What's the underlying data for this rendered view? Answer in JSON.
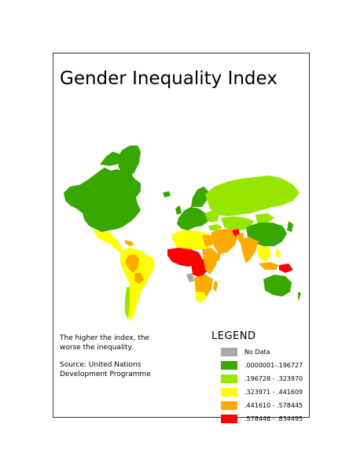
{
  "title": "Gender Inequality Index",
  "notes": {
    "line1": "The higher the index, the",
    "line2": "worse the inequality.",
    "line3": "Source: United Nations",
    "line4": "Development Programme"
  },
  "legend": {
    "title": "LEGEND",
    "items": [
      {
        "label": "No Data",
        "color": "#a9a9a9"
      },
      {
        "label": ".0000001-.196727",
        "color": "#38a800"
      },
      {
        "label": ".196728 - .323970",
        "color": "#98e600"
      },
      {
        "label": ".323971 - .441609",
        "color": "#ffff00"
      },
      {
        "label": ".441610 - .578445",
        "color": "#ffaa00"
      },
      {
        "label": ".578446 - .834495",
        "color": "#ff0000"
      }
    ]
  },
  "regions": [
    {
      "name": "north-america",
      "class": ".0000001-.196727"
    },
    {
      "name": "greenland",
      "class": ".0000001-.196727"
    },
    {
      "name": "central-america",
      "class": ".323971 - .441609"
    },
    {
      "name": "south-america-north",
      "class": ".323971 - .441609"
    },
    {
      "name": "south-america-south",
      "class": ".323971 - .441609"
    },
    {
      "name": "europe-west",
      "class": ".0000001-.196727"
    },
    {
      "name": "scandinavia",
      "class": ".0000001-.196727"
    },
    {
      "name": "russia",
      "class": ".196728 - .323970"
    },
    {
      "name": "central-asia",
      "class": ".196728 - .323970"
    },
    {
      "name": "china",
      "class": ".0000001-.196727"
    },
    {
      "name": "middle-east",
      "class": ".441610 - .578445"
    },
    {
      "name": "south-asia",
      "class": ".441610 - .578445"
    },
    {
      "name": "north-africa",
      "class": ".323971 - .441609"
    },
    {
      "name": "west-africa",
      "class": ".578446 - .834495"
    },
    {
      "name": "east-africa",
      "class": ".441610 - .578445"
    },
    {
      "name": "southern-africa",
      "class": ".441610 - .578445"
    },
    {
      "name": "southeast-asia",
      "class": ".323971 - .441609"
    },
    {
      "name": "indonesia-png",
      "class": ".578446 - .834495"
    },
    {
      "name": "australia",
      "class": ".0000001-.196727"
    },
    {
      "name": "japan",
      "class": ".0000001-.196727"
    }
  ]
}
